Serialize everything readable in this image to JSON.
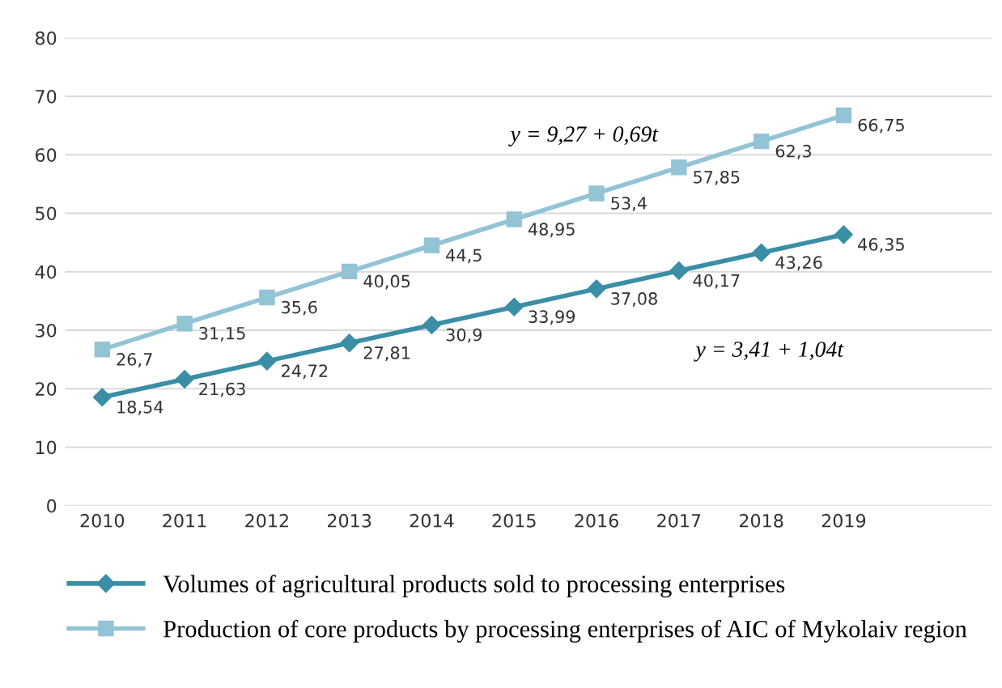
{
  "chart_data": {
    "type": "line",
    "categories": [
      "2010",
      "2011",
      "2012",
      "2013",
      "2014",
      "2015",
      "2016",
      "2017",
      "2018",
      "2019"
    ],
    "series": [
      {
        "name": "Volumes of agricultural products sold to processing enterprises",
        "color": "#3a8ea5",
        "marker": "diamond",
        "values": [
          18.54,
          21.63,
          24.72,
          27.81,
          30.9,
          33.99,
          37.08,
          40.17,
          43.26,
          46.35
        ],
        "value_labels": [
          "18,54",
          "21,63",
          "24,72",
          "27,81",
          "30,9",
          "33,99",
          "37,08",
          "40,17",
          "43,26",
          "46,35"
        ]
      },
      {
        "name": "Production of core products by processing enterprises of AIC of Mykolaiv region",
        "color": "#93c4d6",
        "marker": "square",
        "values": [
          26.7,
          31.15,
          35.6,
          40.05,
          44.5,
          48.95,
          53.4,
          57.85,
          62.3,
          66.75
        ],
        "value_labels": [
          "26,7",
          "31,15",
          "35,6",
          "40,05",
          "44,5",
          "48,95",
          "53,4",
          "57,85",
          "62,3",
          "66,75"
        ]
      }
    ],
    "annotations": [
      "y = 9,27 + 0,69t",
      "y = 3,41 + 1,04t"
    ],
    "ylim": [
      0,
      80
    ],
    "yticks": [
      0,
      10,
      20,
      30,
      40,
      50,
      60,
      70,
      80
    ],
    "grid": "y",
    "legend": "bottom",
    "line_style": "solid"
  }
}
